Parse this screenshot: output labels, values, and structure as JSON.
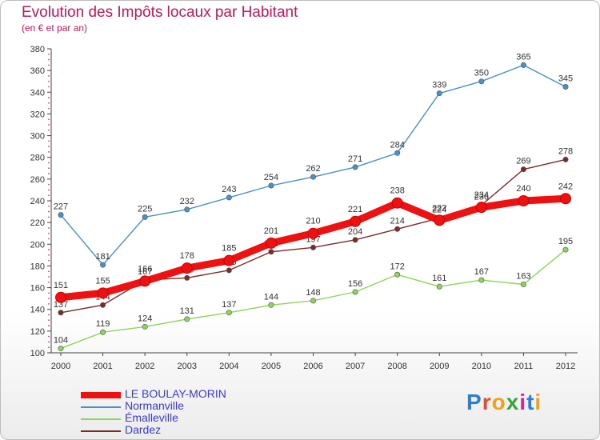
{
  "header": {
    "title": "Evolution des Impôts locaux par Habitant",
    "subtitle": "(en € et par an)"
  },
  "logo": {
    "text": "Proxiti"
  },
  "colors": {
    "accent": "#c2185b",
    "legend_text": "#3a3ad6"
  },
  "chart_data": {
    "type": "line",
    "x": [
      2000,
      2001,
      2002,
      2003,
      2004,
      2005,
      2006,
      2007,
      2008,
      2009,
      2010,
      2011,
      2012
    ],
    "ylim": [
      100,
      380
    ],
    "yticks": [
      100,
      120,
      140,
      160,
      180,
      200,
      220,
      240,
      260,
      280,
      300,
      320,
      340,
      360,
      380
    ],
    "title": "Evolution des Impôts locaux par Habitant",
    "ylabel": "(en € et par an)",
    "grid": false,
    "legend": "bottom-left",
    "series": [
      {
        "name": "Normanville",
        "color": "#4a90c8",
        "values": [
          227,
          181,
          225,
          232,
          243,
          254,
          262,
          271,
          284,
          339,
          350,
          365,
          345
        ]
      },
      {
        "name": "Émalleville",
        "color": "#8fd45a",
        "values": [
          104,
          119,
          124,
          131,
          137,
          144,
          148,
          156,
          172,
          161,
          167,
          163,
          195
        ]
      },
      {
        "name": "Dardez",
        "color": "#7a2b2b",
        "values": [
          137,
          144,
          167,
          169,
          176,
          193,
          197,
          204,
          214,
          224,
          236,
          269,
          278
        ]
      },
      {
        "name": "LE BOULAY-MORIN",
        "color": "#ee1111",
        "values": [
          151,
          155,
          166,
          178,
          185,
          201,
          210,
          221,
          238,
          222,
          234,
          240,
          242
        ]
      }
    ]
  }
}
